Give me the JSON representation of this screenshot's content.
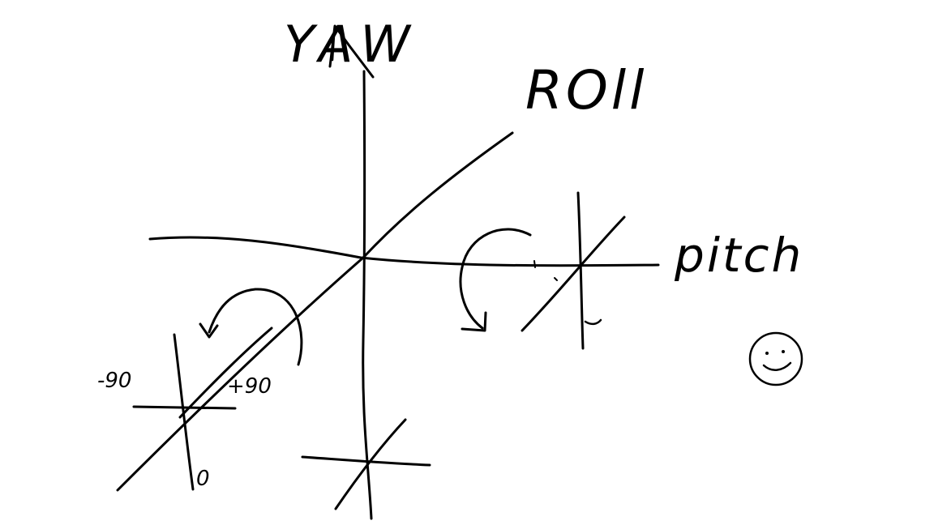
{
  "labels": {
    "yaw": "YAW",
    "roll": "ROll",
    "pitch": "pitch",
    "minus_90": "-90",
    "plus_90": "+90",
    "zero": "0"
  },
  "icons": {
    "smiley": "smiley-face-icon"
  },
  "colors": {
    "ink": "#000000",
    "background": "#ffffff"
  }
}
